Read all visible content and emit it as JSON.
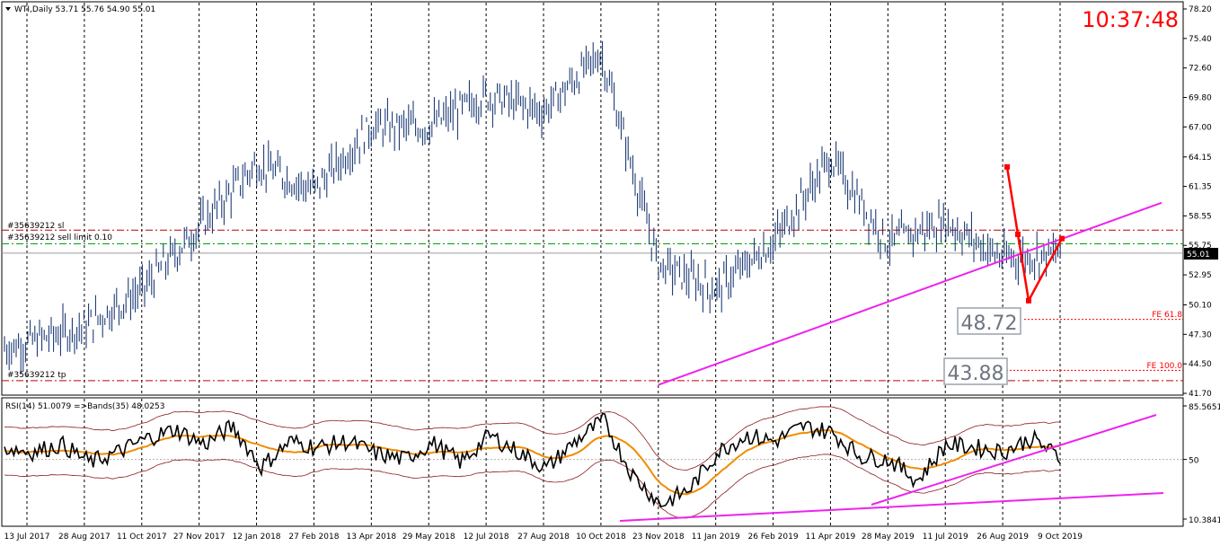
{
  "header": {
    "symbol_info": "WTI,Daily  53.71 55.76 54.90 55.01",
    "clock": "10:37:48"
  },
  "indicator_header": "RSI(14) 51.0079  =>Bands(35) 48.0253",
  "levels": {
    "sl_label": "#35639212 sl",
    "sell_limit_label": "#35639212 sell limit 0.10",
    "tp_label": "#35639212 tp",
    "fe618_label": "FE 61.8",
    "fe100_label": "FE 100.0",
    "target1": "48.72",
    "target2": "43.88",
    "current_price": "55.01"
  },
  "price_axis": [
    "78.20",
    "75.40",
    "72.60",
    "69.80",
    "67.00",
    "64.15",
    "61.35",
    "58.55",
    "55.75",
    "52.95",
    "50.10",
    "47.30",
    "44.50",
    "41.70"
  ],
  "rsi_axis": [
    "85.5651",
    "50",
    "10.3841"
  ],
  "date_axis": [
    "13 Jul 2017",
    "28 Aug 2017",
    "11 Oct 2017",
    "27 Nov 2017",
    "12 Jan 2018",
    "27 Feb 2018",
    "13 Apr 2018",
    "29 May 2018",
    "12 Jul 2018",
    "27 Aug 2018",
    "10 Oct 2018",
    "23 Nov 2018",
    "11 Jan 2019",
    "26 Feb 2019",
    "11 Apr 2019",
    "28 May 2019",
    "11 Jul 2019",
    "26 Aug 2019",
    "9 Oct 2019"
  ],
  "chart_data": [
    {
      "type": "candlestick",
      "title": "WTI,Daily",
      "ylim": [
        41.7,
        78.2
      ],
      "x": [
        "13 Jul 2017",
        "28 Aug 2017",
        "11 Oct 2017",
        "27 Nov 2017",
        "12 Jan 2018",
        "27 Feb 2018",
        "13 Apr 2018",
        "29 May 2018",
        "12 Jul 2018",
        "27 Aug 2018",
        "10 Oct 2018",
        "23 Nov 2018",
        "11 Jan 2019",
        "26 Feb 2019",
        "11 Apr 2019",
        "28 May 2019",
        "11 Jul 2019",
        "26 Aug 2019",
        "9 Oct 2019"
      ],
      "close_approx": [
        46.5,
        48.0,
        51.5,
        57.5,
        63.5,
        61.0,
        67.0,
        67.0,
        70.0,
        68.5,
        74.0,
        54.0,
        51.5,
        56.0,
        64.0,
        56.0,
        58.0,
        54.5,
        55.0
      ],
      "last": {
        "open": 53.71,
        "high": 55.76,
        "low": 54.9,
        "close": 55.01
      },
      "levels": {
        "sl": 57.2,
        "sell_limit": 55.9,
        "tp": 42.9,
        "fe_61_8": 48.72,
        "fe_100": 43.88
      },
      "trendline": {
        "from": [
          "23 Nov 2018",
          42.5
        ],
        "to": [
          "9 Oct 2019",
          59.8
        ]
      },
      "pattern_points": [
        63.2,
        56.8,
        50.5,
        56.4
      ]
    },
    {
      "type": "line",
      "title": "RSI(14)",
      "ylim": [
        10.3841,
        85.5651
      ],
      "series": [
        {
          "name": "RSI(14)",
          "values": [
            58,
            55,
            60,
            48,
            55,
            64,
            70,
            60,
            72,
            45,
            62,
            58,
            62,
            54,
            50,
            61,
            48,
            66,
            55,
            44,
            62,
            76,
            40,
            20,
            30,
            55,
            66,
            62,
            72,
            68,
            52,
            50,
            36,
            60,
            58,
            55,
            64,
            51
          ]
        },
        {
          "name": "Bands(35)",
          "values": [
            48.0253
          ]
        }
      ],
      "reference_line": 50
    }
  ]
}
